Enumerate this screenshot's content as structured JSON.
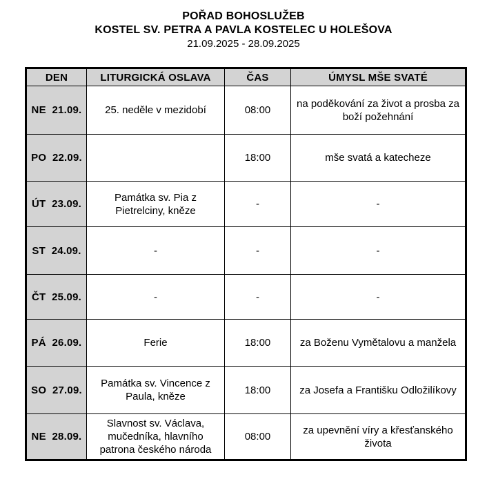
{
  "title": {
    "line1": "POŘAD BOHOSLUŽEB",
    "line2": "KOSTEL SV. PETRA A PAVLA KOSTELEC U HOLEŠOVA",
    "line3": "21.09.2025 - 28.09.2025"
  },
  "table": {
    "headers": [
      "DEN",
      "LITURGICKÁ OSLAVA",
      "ČAS",
      "ÚMYSL MŠE SVATÉ"
    ],
    "rows": [
      {
        "day": "NE  21.09.",
        "celebration": "25. neděle v mezidobí",
        "time": "08:00",
        "intention": "na poděkování za život a prosba za boží požehnání"
      },
      {
        "day": "PO  22.09.",
        "celebration": "",
        "time": "18:00",
        "intention": "mše svatá a katecheze"
      },
      {
        "day": "ÚT  23.09.",
        "celebration": "Památka sv. Pia z Pietrelciny, kněze",
        "time": "-",
        "intention": "-"
      },
      {
        "day": "ST  24.09.",
        "celebration": "-",
        "time": "-",
        "intention": "-"
      },
      {
        "day": "ČT  25.09.",
        "celebration": "-",
        "time": "-",
        "intention": "-"
      },
      {
        "day": "PÁ  26.09.",
        "celebration": "Ferie",
        "time": "18:00",
        "intention": "za Boženu Vymětalovu a manžela"
      },
      {
        "day": "SO  27.09.",
        "celebration": "Památka sv. Vincence z Paula, kněze",
        "time": "18:00",
        "intention": "za Josefa a Františku Odložilíkovy"
      },
      {
        "day": "NE  28.09.",
        "celebration": "Slavnost sv. Václava, mučedníka, hlavního patrona českého národa",
        "time": "08:00",
        "intention": "za upevnění víry a křesťanského života"
      }
    ],
    "colors": {
      "header_bg": "#d3d3d3",
      "day_column_bg": "#d3d3d3",
      "border": "#000000",
      "text": "#000000",
      "page_bg": "#ffffff"
    }
  }
}
